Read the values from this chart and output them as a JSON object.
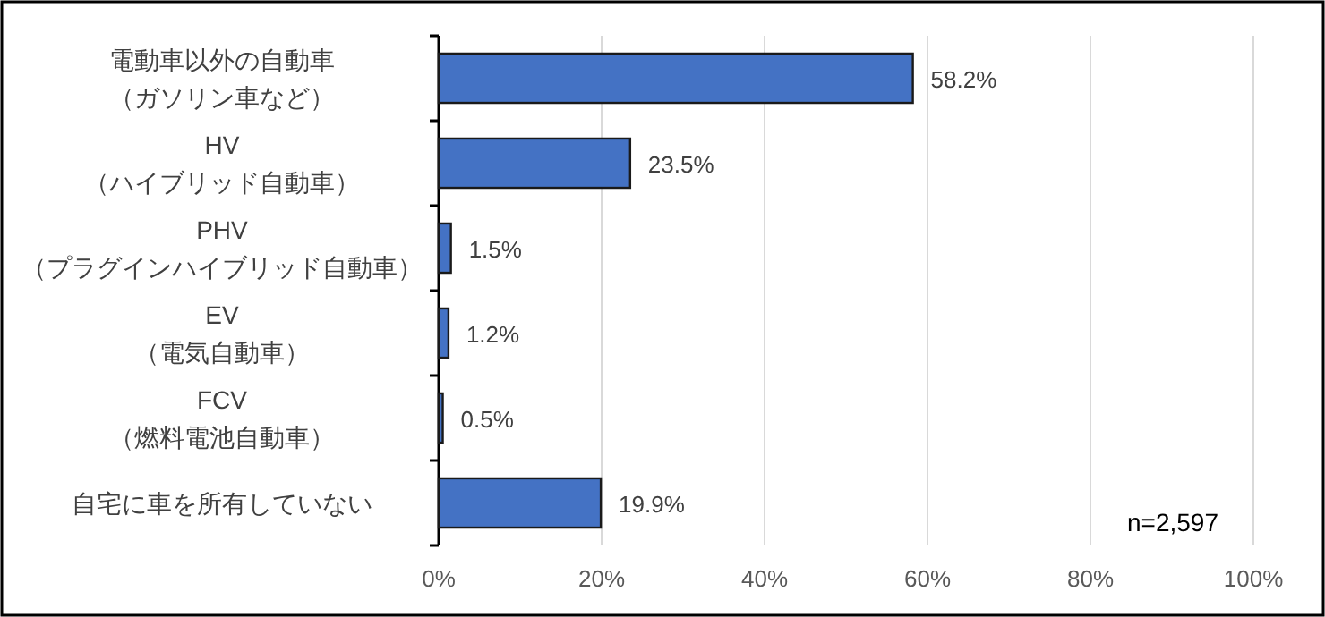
{
  "chart_data": {
    "type": "bar",
    "orientation": "horizontal",
    "categories": [
      "電動車以外の自動車（ガソリン車など）",
      "HV（ハイブリッド自動車）",
      "PHV（プラグインハイブリッド自動車）",
      "EV（電気自動車）",
      "FCV（燃料電池自動車）",
      "自宅に車を所有していない"
    ],
    "values": [
      58.2,
      23.5,
      1.5,
      1.2,
      0.5,
      19.9
    ],
    "value_labels": [
      "58.2%",
      "23.5%",
      "1.5%",
      "1.2%",
      "0.5%",
      "19.9%"
    ],
    "color": "#4472c4",
    "xlim": [
      0,
      100
    ],
    "xticks": [
      {
        "value": 0,
        "label": "0%"
      },
      {
        "value": 20,
        "label": "20%"
      },
      {
        "value": 40,
        "label": "40%"
      },
      {
        "value": 60,
        "label": "60%"
      },
      {
        "value": 80,
        "label": "80%"
      },
      {
        "value": 100,
        "label": "100%"
      }
    ],
    "grid": "x",
    "annotations": [
      "n=2,597"
    ]
  }
}
